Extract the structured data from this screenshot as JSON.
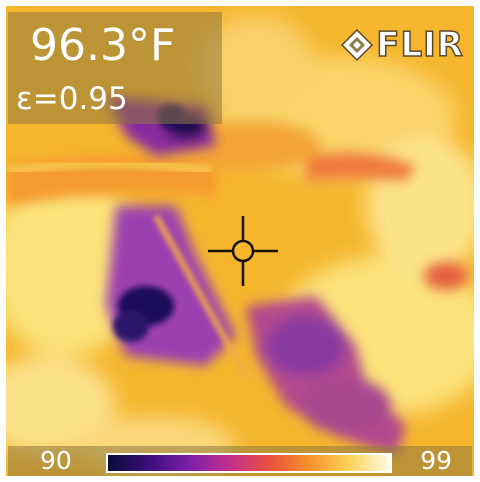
{
  "overlay": {
    "temperature": "96.3°F",
    "emissivity": "ε=0.95",
    "brand": "FLIR",
    "brand_icon": "flir-diamond-icon"
  },
  "scale": {
    "min": "90",
    "max": "99",
    "colors": [
      "#0b0a3a",
      "#3a107a",
      "#7a1fa8",
      "#c0308e",
      "#e8503e",
      "#f8922a",
      "#fbd35a",
      "#fffbe6"
    ]
  },
  "reticle": {
    "icon": "crosshair-icon"
  }
}
